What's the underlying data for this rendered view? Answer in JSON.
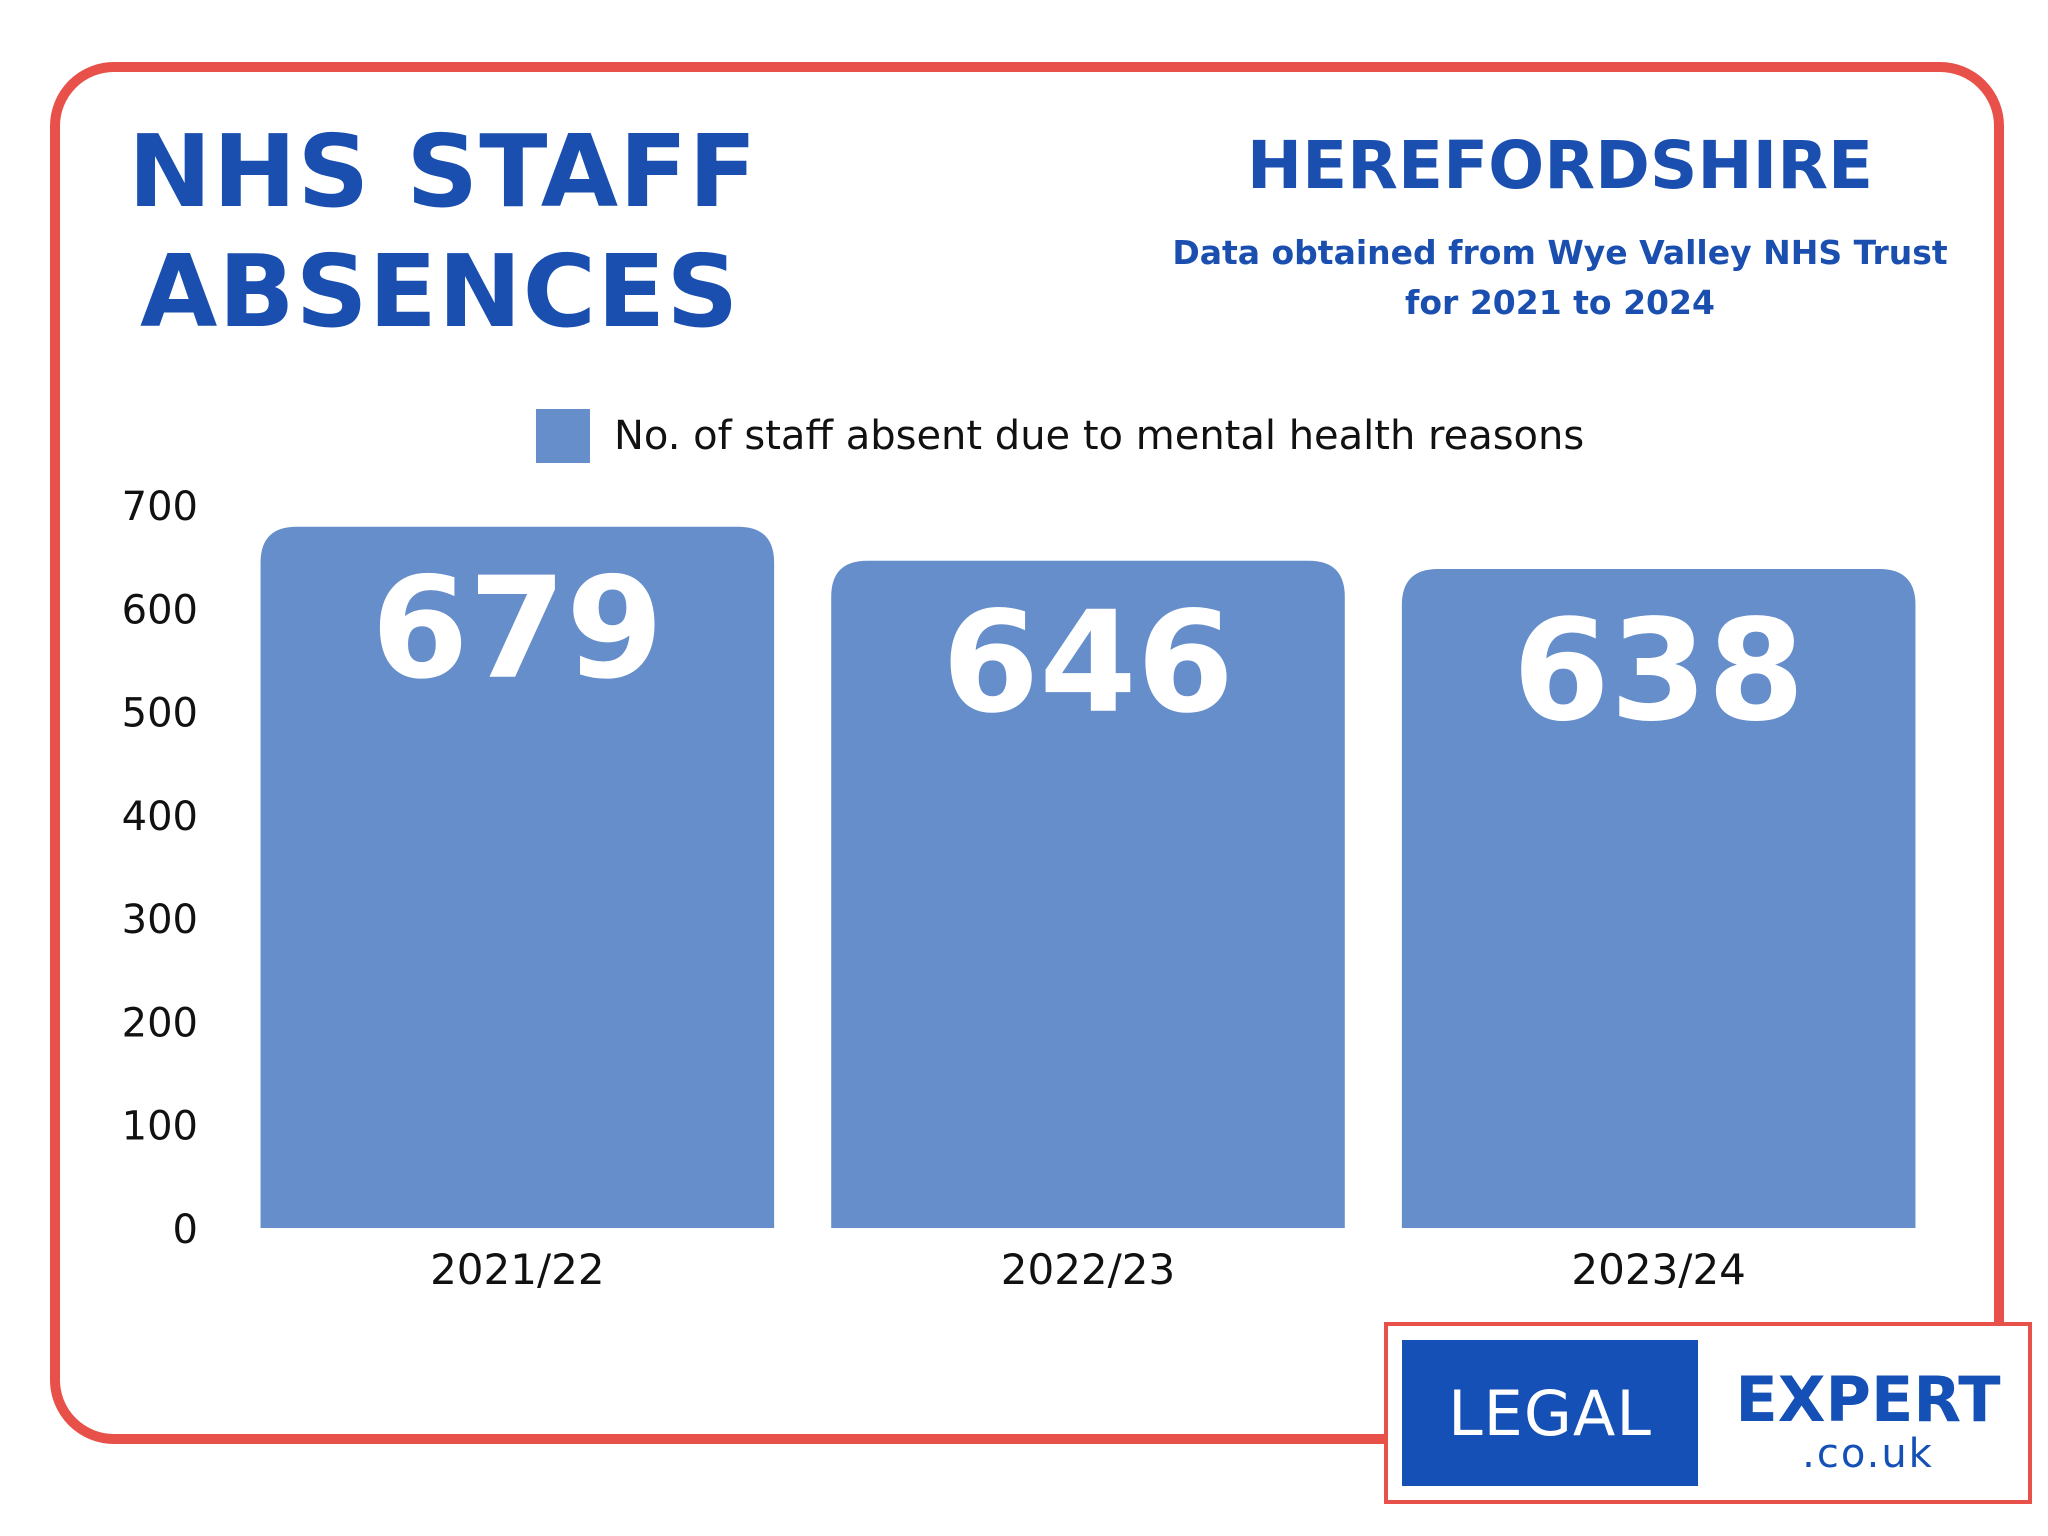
{
  "header": {
    "title_line1": "NHS STAFF",
    "title_line2": "ABSENCES",
    "region": "HEREFORDSHIRE",
    "source_line1": "Data obtained from Wye Valley NHS Trust",
    "source_line2": "for 2021 to 2024"
  },
  "legend": {
    "label": "No. of staff absent due to mental health reasons"
  },
  "colors": {
    "frame": "#e8514a",
    "accent": "#1a4fb0",
    "bar": "#668ecb"
  },
  "chart_data": {
    "type": "bar",
    "categories": [
      "2021/22",
      "2022/23",
      "2023/24"
    ],
    "series": [
      {
        "name": "No. of staff absent due to mental health reasons",
        "values": [
          679,
          646,
          638
        ]
      }
    ],
    "data_labels": [
      "679",
      "646",
      "638"
    ],
    "y_ticks": [
      0,
      100,
      200,
      300,
      400,
      500,
      600,
      700
    ],
    "ylim": [
      0,
      700
    ],
    "grid": false,
    "legend_position": "top"
  },
  "logo": {
    "left": "LEGAL",
    "right_line1": "EXPERT",
    "right_line2": ".co.uk"
  }
}
